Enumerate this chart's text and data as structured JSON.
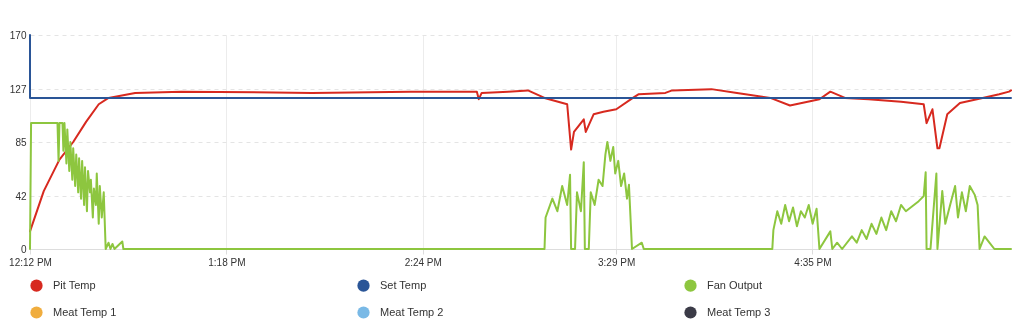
{
  "chart_data": {
    "type": "line",
    "xlim": [
      12.2,
      17.695
    ],
    "ylim": [
      0,
      170
    ],
    "yticks": [
      0,
      42,
      85,
      127,
      170
    ],
    "xticks": [
      {
        "value": 12.2,
        "label": "12:12 PM"
      },
      {
        "value": 13.3,
        "label": "1:18 PM"
      },
      {
        "value": 14.4,
        "label": "2:24 PM"
      },
      {
        "value": 15.483,
        "label": "3:29 PM"
      },
      {
        "value": 16.583,
        "label": "4:35 PM"
      }
    ],
    "grid": true,
    "legend": "bottom",
    "marker": "none",
    "series": [
      {
        "name": "Pit Temp",
        "color": "#d7291f",
        "x": [
          12.2,
          12.277,
          12.365,
          12.442,
          12.514,
          12.585,
          12.64,
          12.789,
          13.047,
          13.779,
          14.329,
          14.703,
          14.714,
          14.73,
          14.879,
          14.989,
          15.082,
          15.209,
          15.231,
          15.247,
          15.302,
          15.313,
          15.357,
          15.412,
          15.484,
          15.577,
          15.61,
          15.759,
          15.797,
          16.017,
          16.16,
          16.347,
          16.457,
          16.622,
          16.683,
          16.765,
          16.897,
          17.079,
          17.206,
          17.222,
          17.255,
          17.283,
          17.294,
          17.338,
          17.409,
          17.536,
          17.629,
          17.684,
          17.695
        ],
        "values": [
          14,
          46,
          71,
          85,
          101,
          115,
          120,
          124,
          125,
          124,
          125,
          125,
          119,
          124,
          125,
          126,
          120,
          115,
          79,
          93,
          103,
          93,
          107,
          109,
          111,
          120,
          123,
          124,
          126,
          127,
          124,
          120,
          114,
          119,
          125,
          120,
          119,
          117,
          115,
          100,
          111,
          80,
          80,
          107,
          116,
          120,
          123,
          125,
          126
        ]
      },
      {
        "name": "Set Temp",
        "color": "#2a5597",
        "x": [
          12.2,
          12.2,
          17.695
        ],
        "values": [
          170,
          120,
          120
        ]
      },
      {
        "name": "Fan Output",
        "color": "#8dc63f",
        "x": [
          12.2,
          12.206,
          12.354,
          12.36,
          12.365,
          12.382,
          12.387,
          12.393,
          12.404,
          12.409,
          12.42,
          12.426,
          12.437,
          12.442,
          12.453,
          12.459,
          12.47,
          12.475,
          12.486,
          12.492,
          12.503,
          12.508,
          12.519,
          12.525,
          12.536,
          12.541,
          12.552,
          12.558,
          12.569,
          12.574,
          12.585,
          12.591,
          12.602,
          12.613,
          12.624,
          12.64,
          12.651,
          12.662,
          12.673,
          12.717,
          12.723,
          15.082,
          15.088,
          15.126,
          15.154,
          15.181,
          15.209,
          15.225,
          15.231,
          15.253,
          15.264,
          15.286,
          15.302,
          15.308,
          15.33,
          15.341,
          15.363,
          15.385,
          15.407,
          15.423,
          15.434,
          15.451,
          15.467,
          15.478,
          15.495,
          15.511,
          15.528,
          15.544,
          15.555,
          15.572,
          15.627,
          15.638,
          16.358,
          16.364,
          16.386,
          16.408,
          16.43,
          16.452,
          16.474,
          16.496,
          16.518,
          16.54,
          16.562,
          16.584,
          16.606,
          16.622,
          16.683,
          16.694,
          16.721,
          16.749,
          16.804,
          16.831,
          16.859,
          16.886,
          16.914,
          16.941,
          16.969,
          16.996,
          17.024,
          17.051,
          17.079,
          17.106,
          17.178,
          17.206,
          17.217,
          17.222,
          17.244,
          17.277,
          17.283,
          17.31,
          17.327,
          17.354,
          17.382,
          17.398,
          17.42,
          17.442,
          17.464,
          17.492,
          17.508,
          17.519,
          17.547,
          17.574,
          17.602,
          17.695
        ],
        "values": [
          0,
          100,
          100,
          70,
          100,
          100,
          78,
          100,
          68,
          95,
          62,
          85,
          55,
          80,
          50,
          75,
          45,
          72,
          40,
          70,
          35,
          65,
          30,
          62,
          45,
          55,
          25,
          48,
          35,
          60,
          20,
          50,
          25,
          45,
          0,
          5,
          0,
          4,
          0,
          6,
          0,
          0,
          25,
          40,
          30,
          50,
          35,
          59,
          0,
          0,
          45,
          30,
          69,
          0,
          0,
          45,
          35,
          55,
          50,
          75,
          85,
          70,
          81,
          60,
          70,
          50,
          60,
          40,
          51,
          0,
          5,
          0,
          0,
          15,
          30,
          20,
          35,
          22,
          33,
          18,
          30,
          25,
          35,
          20,
          32,
          0,
          14,
          0,
          5,
          0,
          10,
          5,
          15,
          8,
          20,
          12,
          25,
          15,
          30,
          22,
          35,
          30,
          38,
          42,
          61,
          0,
          0,
          60,
          0,
          46,
          20,
          35,
          50,
          25,
          45,
          30,
          50,
          43,
          35,
          0,
          10,
          5,
          0,
          0
        ]
      },
      {
        "name": "Meat Temp 1",
        "color": "#f0ad3e"
      },
      {
        "name": "Meat Temp 2",
        "color": "#79b9e6"
      },
      {
        "name": "Meat Temp 3",
        "color": "#3b3b47"
      }
    ]
  }
}
